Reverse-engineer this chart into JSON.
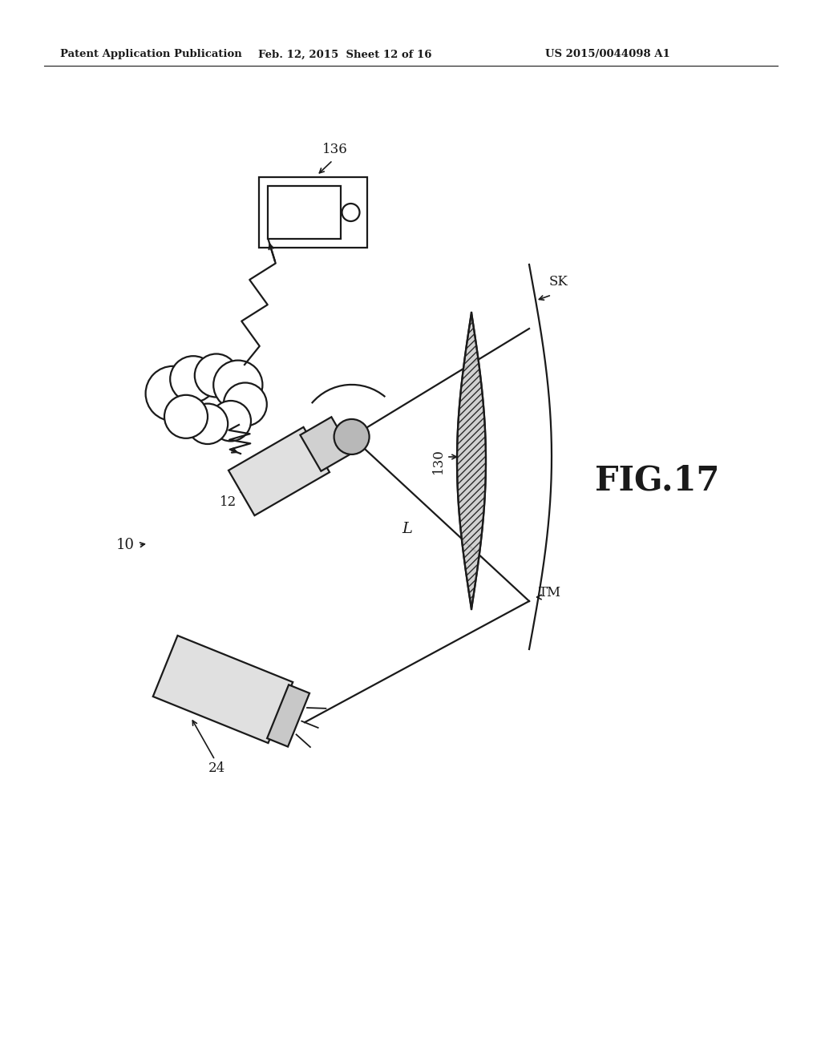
{
  "bg_color": "#ffffff",
  "line_color": "#1a1a1a",
  "header_left": "Patent Application Publication",
  "header_center": "Feb. 12, 2015  Sheet 12 of 16",
  "header_right": "US 2015/0044098 A1",
  "fig_label": "FIG.17"
}
